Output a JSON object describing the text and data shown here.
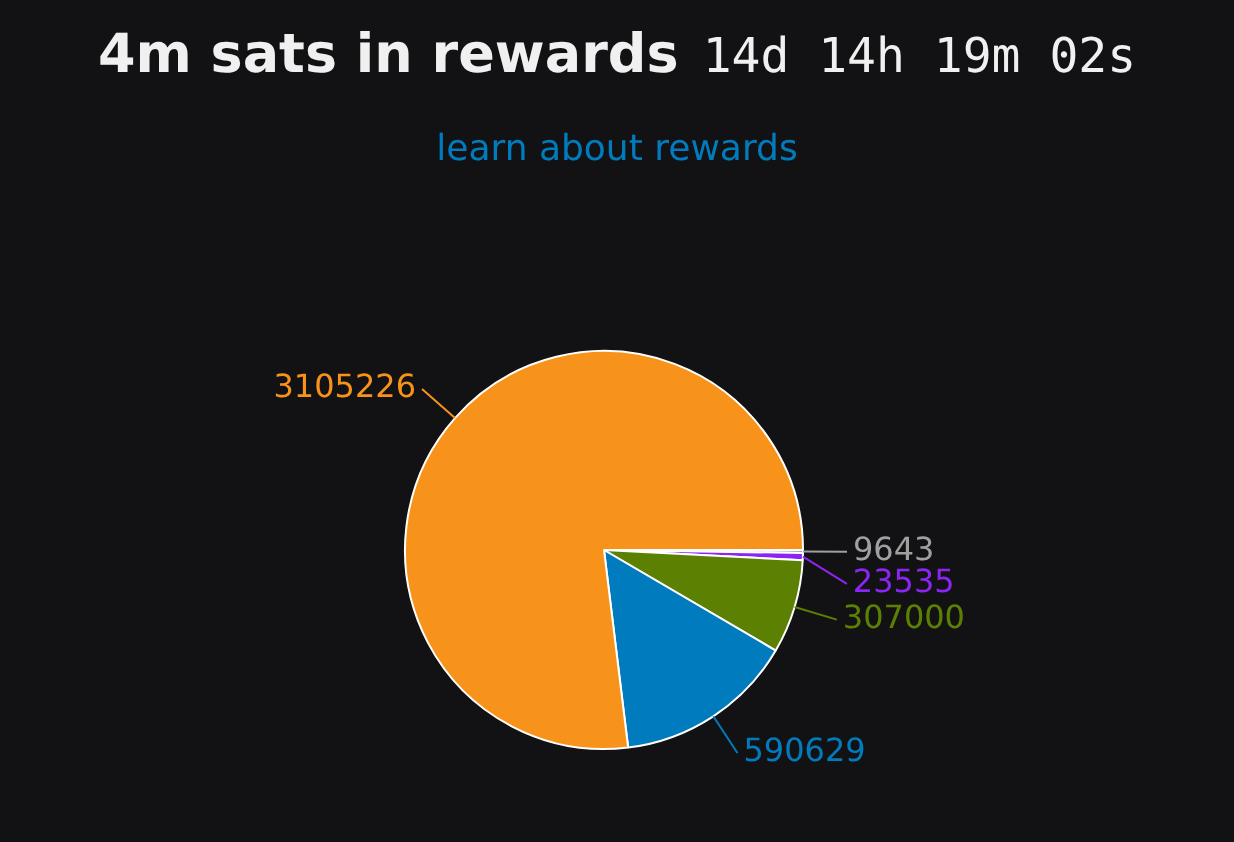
{
  "chart_data": {
    "type": "pie",
    "title": "4m sats in rewards",
    "subtitle": "14d 14h 19m 02s",
    "annotations": [
      "learn about rewards"
    ],
    "categories": [
      null,
      null,
      null,
      null,
      null
    ],
    "values": [
      9643,
      23535,
      307000,
      590629,
      3105226
    ],
    "colors": [
      "#a0a0a0",
      "#8c25f4",
      "#5c8001",
      "#007cbe",
      "#f7931a"
    ],
    "data_labels": true,
    "legend": false
  }
}
